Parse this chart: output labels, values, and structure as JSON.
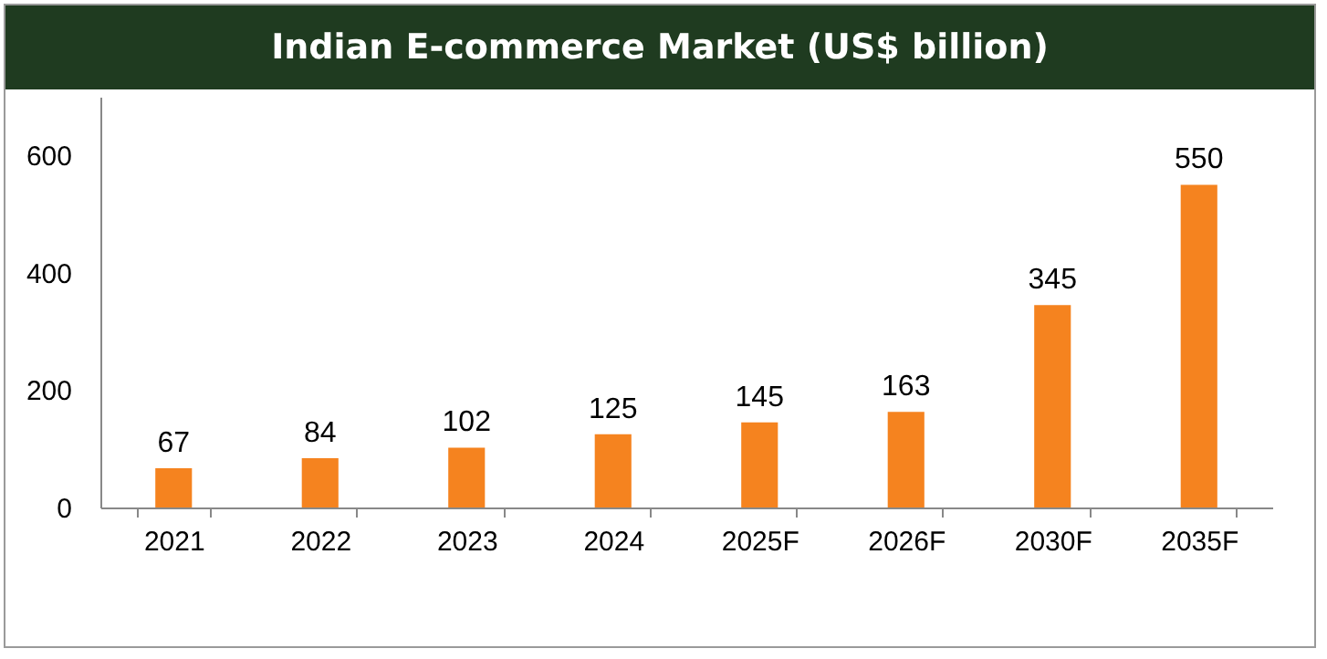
{
  "chart_data": {
    "type": "bar",
    "title": "Indian E-commerce Market (US$ billion)",
    "categories": [
      "2021",
      "2022",
      "2023",
      "2024",
      "2025F",
      "2026F",
      "2030F",
      "2035F"
    ],
    "values": [
      67,
      84,
      102,
      125,
      145,
      163,
      345,
      550
    ],
    "color": "#f5831f",
    "ylim": [
      0,
      700
    ],
    "yticks": [
      0,
      200,
      400,
      600
    ],
    "grid": false,
    "data_labels": true
  }
}
